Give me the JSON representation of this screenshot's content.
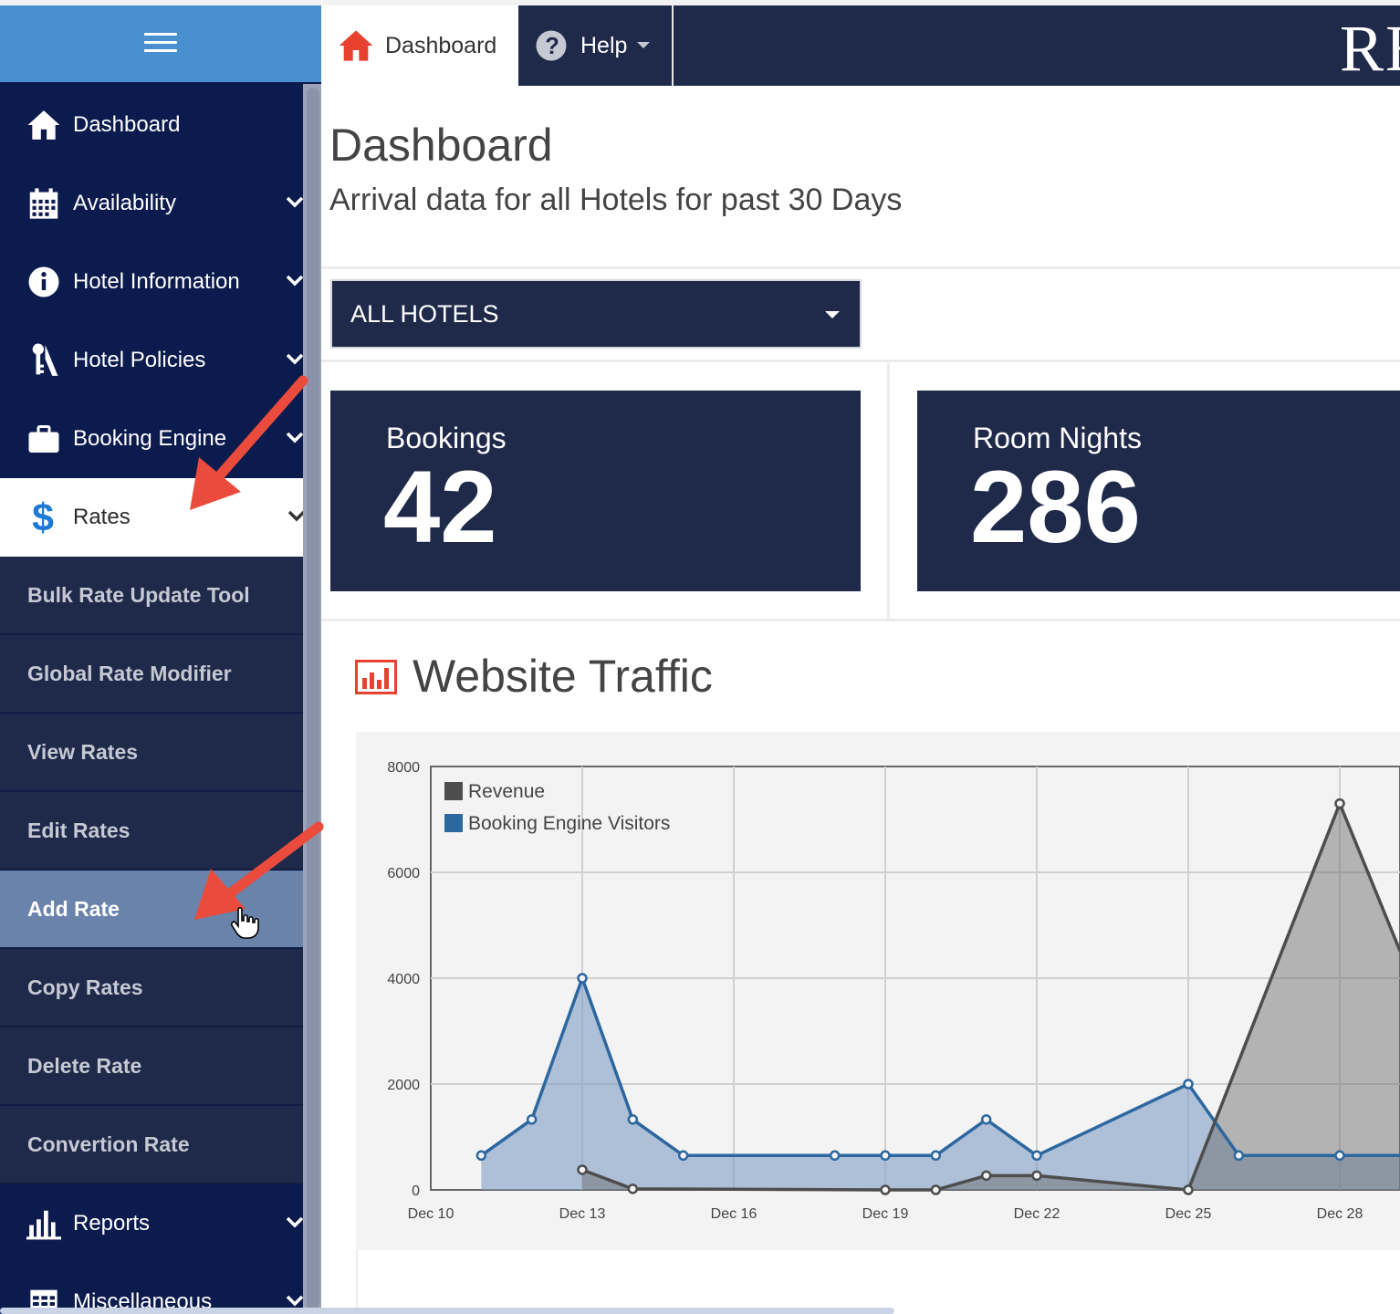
{
  "topbar": {
    "tabs": [
      {
        "label": "Dashboard",
        "icon": "home-icon"
      },
      {
        "label": "Help",
        "icon": "question-circle-icon"
      }
    ],
    "brand_text": "RE"
  },
  "sidebar": {
    "items": [
      {
        "label": "Dashboard",
        "icon": "home-icon"
      },
      {
        "label": "Availability",
        "icon": "calendar-icon"
      },
      {
        "label": "Hotel Information",
        "icon": "info-icon"
      },
      {
        "label": "Hotel Policies",
        "icon": "policy-icon"
      },
      {
        "label": "Booking Engine",
        "icon": "briefcase-icon"
      },
      {
        "label": "Rates",
        "icon": "dollar-icon"
      },
      {
        "label": "Reports",
        "icon": "bar-chart-icon"
      },
      {
        "label": "Miscellaneous",
        "icon": "table-icon"
      }
    ],
    "rates_submenu": [
      "Bulk Rate Update Tool",
      "Global Rate Modifier",
      "View Rates",
      "Edit Rates",
      "Add Rate",
      "Copy Rates",
      "Delete Rate",
      "Convertion Rate"
    ]
  },
  "main": {
    "title": "Dashboard",
    "subtitle": "Arrival data for all Hotels for past 30 Days",
    "hotel_select": "ALL HOTELS",
    "stats": {
      "bookings_label": "Bookings",
      "bookings_value": "42",
      "room_nights_label": "Room Nights",
      "room_nights_value": "286"
    },
    "traffic_title": "Website Traffic"
  },
  "colors": {
    "navy": "#1f2a4a",
    "sidebar_bg": "#0c1b4d",
    "sidebar_header": "#4a8fd0",
    "accent_red": "#e8412f",
    "visitors": "#2d67a0",
    "revenue": "#4d4d4d"
  },
  "chart_data": {
    "type": "area",
    "title": "Website Traffic",
    "ylim": [
      0,
      8000
    ],
    "yticks": [
      0,
      2000,
      4000,
      6000,
      8000
    ],
    "xticks": [
      "Dec 10",
      "Dec 13",
      "Dec 16",
      "Dec 19",
      "Dec 22",
      "Dec 25",
      "Dec 28"
    ],
    "xlim": [
      10,
      29.2
    ],
    "series": [
      {
        "name": "Revenue",
        "color": "#4d4d4d",
        "points": [
          [
            13,
            380
          ],
          [
            14,
            20
          ],
          [
            19,
            0
          ],
          [
            20,
            0
          ],
          [
            21,
            270
          ],
          [
            22,
            270
          ],
          [
            25,
            0
          ],
          [
            28,
            7300
          ],
          [
            29.2,
            4500
          ]
        ]
      },
      {
        "name": "Booking Engine Visitors",
        "color": "#2d67a0",
        "points": [
          [
            11,
            650
          ],
          [
            12,
            1330
          ],
          [
            13,
            4000
          ],
          [
            14,
            1330
          ],
          [
            15,
            650
          ],
          [
            18,
            650
          ],
          [
            19,
            650
          ],
          [
            20,
            650
          ],
          [
            21,
            1330
          ],
          [
            22,
            650
          ],
          [
            25,
            2000
          ],
          [
            26,
            650
          ],
          [
            28,
            650
          ],
          [
            29.2,
            650
          ]
        ]
      }
    ],
    "legend": [
      "Revenue",
      "Booking Engine Visitors"
    ]
  }
}
